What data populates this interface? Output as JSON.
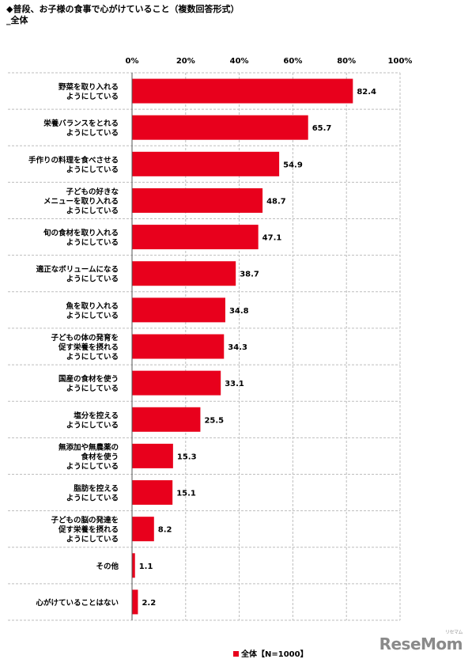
{
  "header": {
    "title": "◆普段、お子様の食事で心がけていること（複数回答形式）",
    "subtitle": "_全体"
  },
  "chart_data": {
    "type": "bar",
    "orientation": "horizontal",
    "xlim": [
      0,
      100
    ],
    "ticks": [
      "0%",
      "20%",
      "40%",
      "60%",
      "80%",
      "100%"
    ],
    "grid": true,
    "categories": [
      [
        "野菜を取り入れる",
        "ようにしている"
      ],
      [
        "栄養バランスをとれる",
        "ようにしている"
      ],
      [
        "手作りの料理を食べさせる",
        "ようにしている"
      ],
      [
        "子どもの好きな",
        "メニューを取り入れる",
        "ようにしている"
      ],
      [
        "旬の食材を取り入れる",
        "ようにしている"
      ],
      [
        "適正なボリュームになる",
        "ようにしている"
      ],
      [
        "魚を取り入れる",
        "ようにしている"
      ],
      [
        "子どもの体の発育を",
        "促す栄養を摂れる",
        "ようにしている"
      ],
      [
        "国産の食材を使う",
        "ようにしている"
      ],
      [
        "塩分を控える",
        "ようにしている"
      ],
      [
        "無添加や無農薬の",
        "食材を使う",
        "ようにしている"
      ],
      [
        "脂肪を控える",
        "ようにしている"
      ],
      [
        "子どもの脳の発達を",
        "促す栄養を摂れる",
        "ようにしている"
      ],
      [
        "その他"
      ],
      [
        "心がけていることはない"
      ]
    ],
    "series": [
      {
        "name": "全体【N=1000】",
        "color": "#e8001c",
        "values": [
          82.4,
          65.7,
          54.9,
          48.7,
          47.1,
          38.7,
          34.8,
          34.3,
          33.1,
          25.5,
          15.3,
          15.1,
          8.2,
          1.1,
          2.2
        ],
        "labels": [
          "82.4",
          "65.7",
          "54.9",
          "48.7",
          "47.1",
          "38.7",
          "34.8",
          "34.3",
          "33.1",
          "25.5",
          "15.3",
          "15.1",
          "8.2",
          "1.1",
          "2.2"
        ]
      }
    ],
    "legend_position": "bottom"
  },
  "watermark": {
    "text": "ReseMom",
    "small": "リセマム"
  }
}
